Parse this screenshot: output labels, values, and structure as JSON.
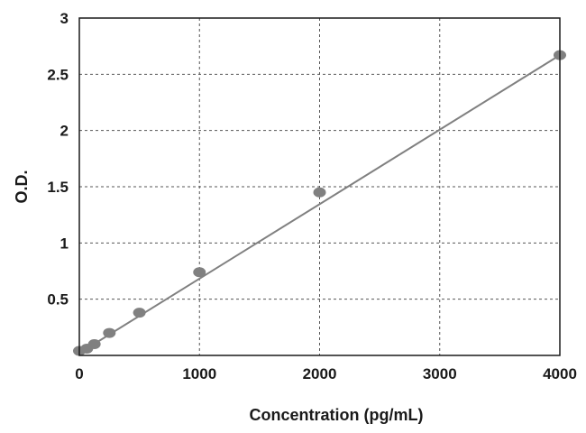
{
  "chart_data": {
    "type": "scatter",
    "title": "",
    "xlabel": "Concentration (pg/mL)",
    "ylabel": "O.D.",
    "xlim": [
      0,
      4000
    ],
    "ylim": [
      0,
      3
    ],
    "x_ticks": [
      0,
      1000,
      2000,
      3000,
      4000
    ],
    "y_ticks": [
      0.5,
      1,
      1.5,
      2,
      2.5,
      3
    ],
    "grid": true,
    "legend": "none",
    "colors": {
      "marker": "#808080",
      "line": "#808080",
      "grid": "#555555",
      "axis": "#1a1a1a"
    },
    "series": [
      {
        "x": [
          0,
          62.5,
          125,
          250,
          500,
          1000,
          2000,
          4000
        ],
        "y": [
          0.04,
          0.06,
          0.1,
          0.2,
          0.38,
          0.74,
          1.45,
          2.67
        ]
      }
    ],
    "fit_line": {
      "x": [
        0,
        4000
      ],
      "y": [
        0.02,
        2.67
      ]
    }
  }
}
